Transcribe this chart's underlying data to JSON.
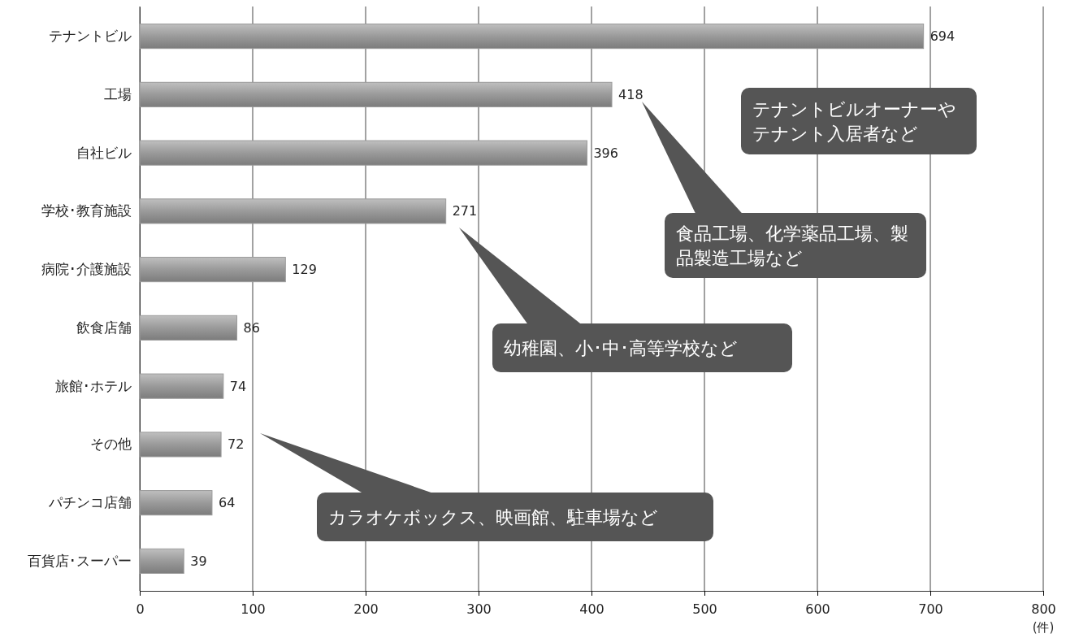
{
  "chart_data": {
    "type": "bar",
    "orientation": "horizontal",
    "categories": [
      "テナントビル",
      "工場",
      "自社ビル",
      "学校･教育施設",
      "病院･介護施設",
      "飲食店舗",
      "旅館･ホテル",
      "その他",
      "パチンコ店舗",
      "百貨店･スーパー"
    ],
    "values": [
      694,
      418,
      396,
      271,
      129,
      86,
      74,
      72,
      64,
      39
    ],
    "color": "#9a9a9a",
    "xlim": [
      0,
      800
    ],
    "xticks": [
      0,
      100,
      200,
      300,
      400,
      500,
      600,
      700,
      800
    ],
    "xlabel": "(件)",
    "grid": "x",
    "data_labels": true,
    "annotations": [
      "テナントビルオーナーやテナント入居者など",
      "食品工場、化学薬品工場、製品製造工場など",
      "幼稚園、小･中･高等学校など",
      "カラオケボックス、映画館、駐車場など"
    ]
  }
}
